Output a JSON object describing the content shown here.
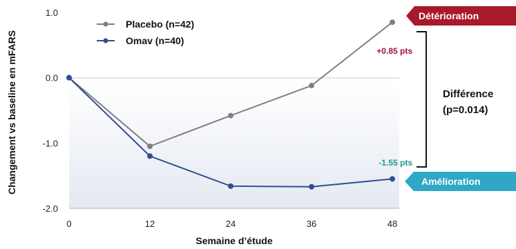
{
  "colors": {
    "placebo": "#808080",
    "omav": "#2f4e92",
    "deterioration_banner": "#a8192a",
    "amelioration_banner": "#2ea8c6",
    "placebo_annotation": "#a0104a",
    "omav_annotation": "#1d9a8e"
  },
  "chart_data": {
    "type": "line",
    "x": [
      0,
      12,
      24,
      36,
      48
    ],
    "xlabel": "Semaine d’étude",
    "ylabel": "Changement vs baseline en mFARS",
    "xticks": [
      "0",
      "12",
      "24",
      "36",
      "48"
    ],
    "yticks": [
      "1.0",
      "0.0",
      "-1.0",
      "-2.0"
    ],
    "ylim": [
      -2.0,
      1.0
    ],
    "xlim": [
      0,
      48
    ],
    "legend_position": "top-left",
    "series": [
      {
        "name": "Placebo (n=42)",
        "values": [
          0,
          -1.05,
          -0.58,
          -0.12,
          0.85
        ]
      },
      {
        "name": "Omav (n=40)",
        "values": [
          0,
          -1.2,
          -1.66,
          -1.67,
          -1.55
        ]
      }
    ],
    "annotations": {
      "placebo_end": "+0.85 pts",
      "omav_end": "-1.55 pts",
      "difference_line1": "Différence",
      "difference_line2": "(p=0.014)",
      "deterioration": "Détérioration",
      "amelioration": "Amélioration"
    }
  }
}
